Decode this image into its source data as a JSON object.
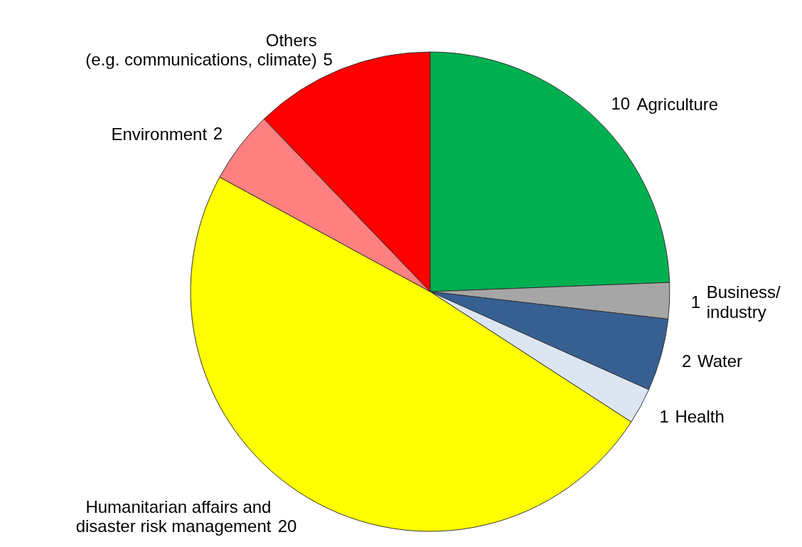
{
  "chart_data": {
    "type": "pie",
    "categories": [
      "Agriculture",
      "Business/\nindustry",
      "Water",
      "Health",
      "Humanitarian affairs and\ndisaster risk management",
      "Environment",
      "Others\n(e.g. communications, climate)"
    ],
    "values": [
      10,
      1,
      2,
      1,
      20,
      2,
      5
    ],
    "colors": [
      "#00b050",
      "#a6a6a6",
      "#376092",
      "#dce6f2",
      "#ffff00",
      "#ff8080",
      "#ff0000"
    ],
    "data_labels": true,
    "legend": false
  }
}
